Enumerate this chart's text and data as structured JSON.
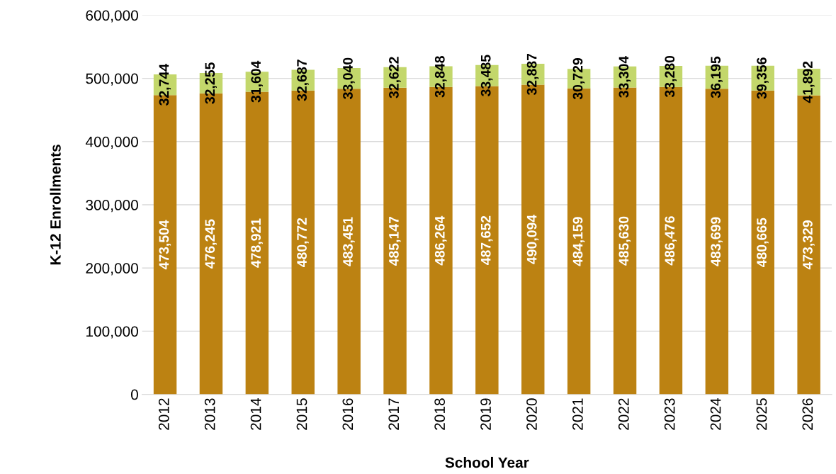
{
  "chart_data": {
    "type": "bar",
    "stacked": true,
    "xlabel": "School Year",
    "ylabel": "K-12 Enrollments",
    "categories": [
      "2012",
      "2013",
      "2014",
      "2015",
      "2016",
      "2017",
      "2018",
      "2019",
      "2020",
      "2021",
      "2022",
      "2023",
      "2024",
      "2025",
      "2026"
    ],
    "series": [
      {
        "color": "#bc8212",
        "values": [
          473504,
          476245,
          478921,
          480772,
          483451,
          485147,
          486264,
          487652,
          490094,
          484159,
          485630,
          486476,
          483699,
          480665,
          473329
        ],
        "value_labels": [
          "473,504",
          "476,245",
          "478,921",
          "480,772",
          "483,451",
          "485,147",
          "486,264",
          "487,652",
          "490,094",
          "484,159",
          "485,630",
          "486,476",
          "483,699",
          "480,665",
          "473,329"
        ]
      },
      {
        "color": "#c3d76b",
        "values": [
          32744,
          32255,
          31604,
          32687,
          33040,
          32622,
          32848,
          33485,
          32887,
          30729,
          33304,
          33280,
          36195,
          39356,
          41892
        ],
        "value_labels": [
          "32,744",
          "32,255",
          "31,604",
          "32,687",
          "33,040",
          "32,622",
          "32,848",
          "33,485",
          "32,887",
          "30,729",
          "33,304",
          "33,280",
          "36,195",
          "39,356",
          "41,892"
        ]
      }
    ],
    "ylim": [
      0,
      600000
    ],
    "yticks": [
      {
        "value": 0,
        "label": "0"
      },
      {
        "value": 100000,
        "label": "100,000"
      },
      {
        "value": 200000,
        "label": "200,000"
      },
      {
        "value": 300000,
        "label": "300,000"
      },
      {
        "value": 400000,
        "label": "400,000"
      },
      {
        "value": 500000,
        "label": "500,000"
      },
      {
        "value": 600000,
        "label": "600,000"
      }
    ],
    "grid": "y"
  }
}
